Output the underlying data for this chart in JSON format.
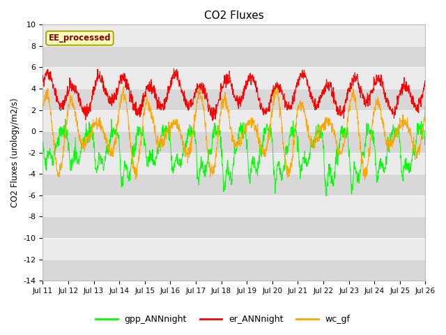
{
  "title": "CO2 Fluxes",
  "ylabel": "CO2 Fluxes (urology/m2/s)",
  "ylim": [
    -14,
    10
  ],
  "yticks": [
    -14,
    -12,
    -10,
    -8,
    -6,
    -4,
    -2,
    0,
    2,
    4,
    6,
    8,
    10
  ],
  "xlim_days": [
    0,
    15
  ],
  "x_tick_labels": [
    "Jul 11",
    "Jul 12",
    "Jul 13",
    "Jul 14",
    "Jul 15",
    "Jul 16",
    "Jul 17",
    "Jul 18",
    "Jul 19",
    "Jul 20",
    "Jul 21",
    "Jul 22",
    "Jul 23",
    "Jul 24",
    "Jul 25",
    "Jul 26"
  ],
  "colors": {
    "gpp": "#00FF00",
    "er": "#FF0000",
    "wc": "#FFA500",
    "band_light": "#EBEBEB",
    "band_dark": "#D8D8D8"
  },
  "legend_label": "EE_processed",
  "legend_bg": "#FFFFC0",
  "legend_border": "#AAAA00",
  "legend_text_color": "#880000",
  "series_labels": [
    "gpp_ANNnight",
    "er_ANNnight",
    "wc_gf"
  ],
  "fig_width": 6.4,
  "fig_height": 4.8,
  "dpi": 100
}
